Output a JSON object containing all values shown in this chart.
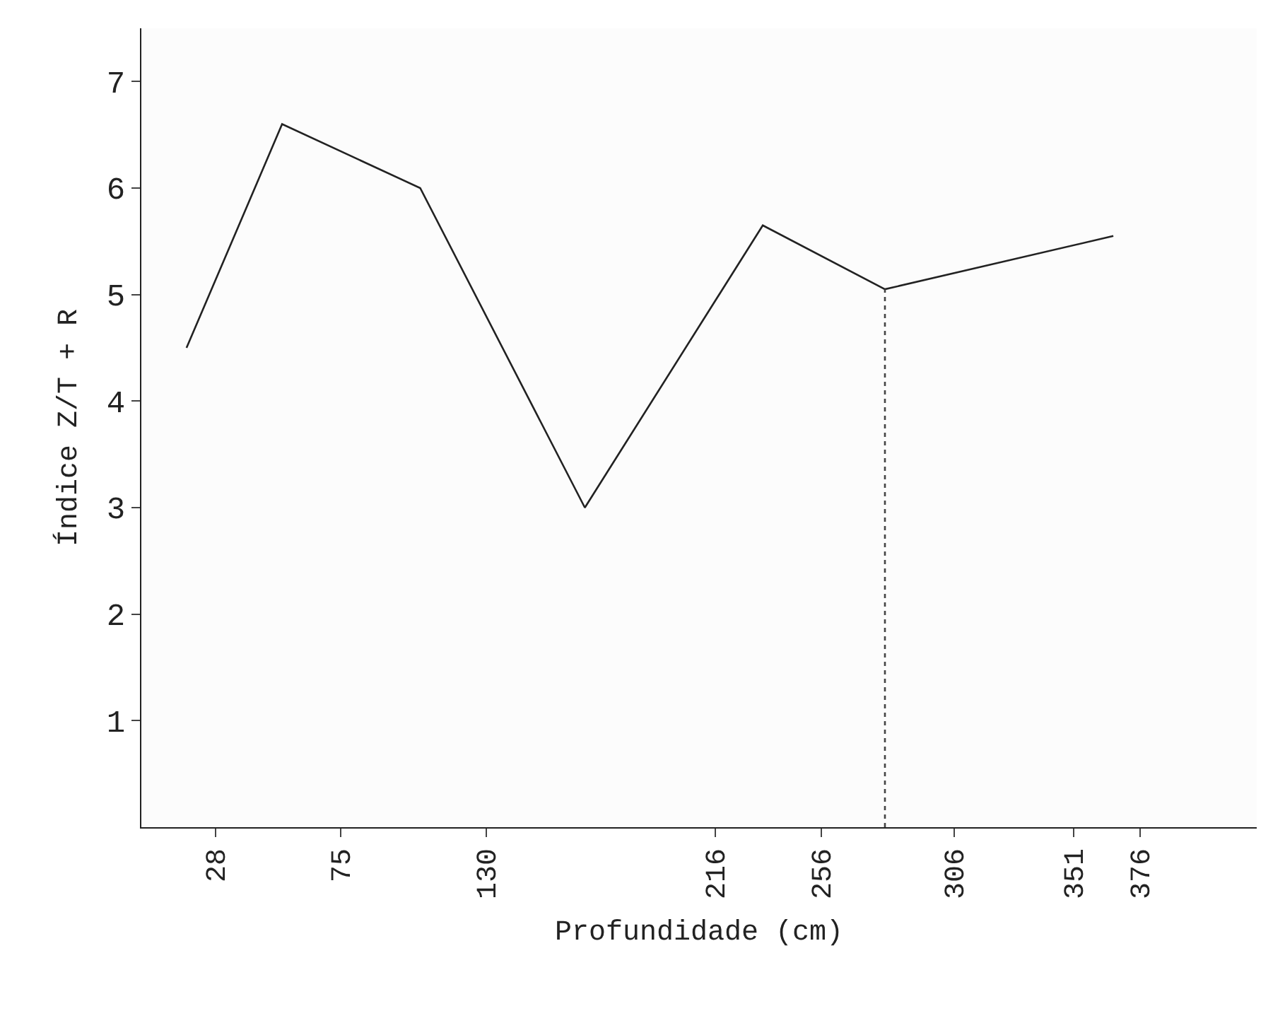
{
  "chart_data": {
    "type": "line",
    "xlabel": "Profundidade (cm)",
    "ylabel": "Índice Z/T + R",
    "xlim": [
      0,
      420
    ],
    "ylim": [
      0,
      7.5
    ],
    "xticks": [
      28,
      75,
      130,
      216,
      256,
      306,
      351,
      376
    ],
    "yticks": [
      1,
      2,
      3,
      4,
      5,
      6,
      7
    ],
    "marker": "none",
    "series": [
      {
        "color": "#222222",
        "x": [
          17,
          53,
          105,
          167,
          234,
          280,
          366
        ],
        "values": [
          4.5,
          6.6,
          6.0,
          3.0,
          5.65,
          5.05,
          5.55
        ],
        "line_style": "solid"
      },
      {
        "color": "#444444",
        "x": [
          280,
          280
        ],
        "values": [
          0,
          5.05
        ],
        "line_style": "dotted"
      }
    ]
  }
}
